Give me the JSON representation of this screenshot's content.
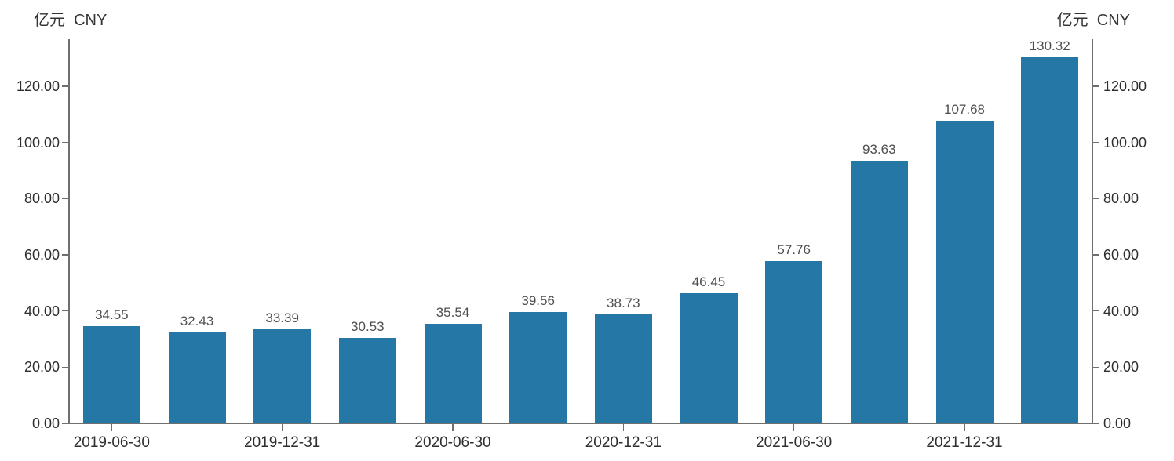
{
  "page": {
    "background_color": "#ffffff"
  },
  "axis_units": {
    "left": "亿元  CNY",
    "right": "亿元  CNY"
  },
  "chart_data": {
    "type": "bar",
    "unit_label_left": "亿元  CNY",
    "unit_label_right": "亿元  CNY",
    "bar_count": 12,
    "values": [
      34.55,
      32.43,
      33.39,
      30.53,
      35.54,
      39.56,
      38.73,
      46.45,
      57.76,
      93.63,
      107.68,
      130.32
    ],
    "bar_value_labels": [
      "34.55",
      "32.43",
      "33.39",
      "30.53",
      "35.54",
      "39.56",
      "38.73",
      "46.45",
      "57.76",
      "93.63",
      "107.68",
      "130.32"
    ],
    "x_tick_labels": [
      "2019-06-30",
      "2019-12-31",
      "2020-06-30",
      "2020-12-31",
      "2021-06-30",
      "2021-12-31"
    ],
    "x_tick_bar_indices": [
      0,
      2,
      4,
      6,
      8,
      10
    ],
    "y_tick_values": [
      0,
      20,
      40,
      60,
      80,
      100,
      120
    ],
    "y_tick_labels": [
      "0.00",
      "20.00",
      "40.00",
      "60.00",
      "80.00",
      "100.00",
      "120.00"
    ],
    "ylim": [
      0,
      136.8
    ],
    "grid": false,
    "legend": "none",
    "colors": {
      "bar": "#2577a6",
      "axis_line": "#6f6f6f",
      "tick_label": "#2e2e2e",
      "value_label": "#4f4f4f",
      "unit_label": "#333333"
    }
  }
}
